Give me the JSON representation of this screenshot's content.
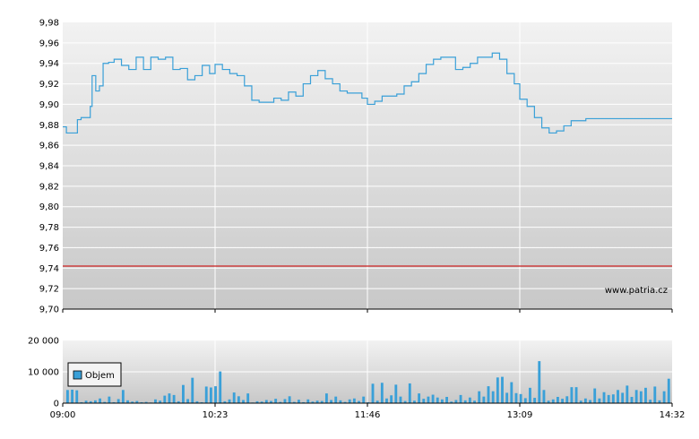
{
  "watermark": "www.patria.cz",
  "colors": {
    "price_line": "#3aa0d8",
    "reference_line": "#cc2222",
    "volume_bar": "#3aa0d8",
    "plot_bg_top": "#f2f2f2",
    "plot_bg_bottom": "#c8c8c8",
    "grid": "#ffffff"
  },
  "chart_data": [
    {
      "type": "line",
      "title": "",
      "ylim": [
        9.7,
        9.98
      ],
      "y_ticks": [
        "9,98",
        "9,96",
        "9,94",
        "9,92",
        "9,90",
        "9,88",
        "9,86",
        "9,84",
        "9,82",
        "9,80",
        "9,78",
        "9,76",
        "9,74",
        "9,72",
        "9,70"
      ],
      "x_ticks": [
        "09:00",
        "10:23",
        "11:46",
        "13:09",
        "14:32"
      ],
      "reference_value": 9.742,
      "series": [
        {
          "x": [
            "09:00",
            "09:02",
            "09:05",
            "09:08",
            "09:10",
            "09:12",
            "09:15",
            "09:16",
            "09:18",
            "09:20",
            "09:22",
            "09:25",
            "09:28",
            "09:32",
            "09:36",
            "09:40",
            "09:44",
            "09:48",
            "09:52",
            "09:56",
            "10:00",
            "10:04",
            "10:08",
            "10:12",
            "10:16",
            "10:20",
            "10:23",
            "10:27",
            "10:31",
            "10:35",
            "10:39",
            "10:43",
            "10:47",
            "10:51",
            "10:55",
            "10:59",
            "11:03",
            "11:07",
            "11:11",
            "11:15",
            "11:19",
            "11:23",
            "11:27",
            "11:31",
            "11:35",
            "11:39",
            "11:43",
            "11:46",
            "11:50",
            "11:54",
            "11:58",
            "12:02",
            "12:06",
            "12:10",
            "12:14",
            "12:18",
            "12:22",
            "12:26",
            "12:30",
            "12:34",
            "12:38",
            "12:42",
            "12:46",
            "12:50",
            "12:54",
            "12:58",
            "13:02",
            "13:06",
            "13:09",
            "13:13",
            "13:17",
            "13:21",
            "13:25",
            "13:29",
            "13:33",
            "13:37",
            "13:41",
            "13:45",
            "13:49",
            "13:53",
            "13:57",
            "14:01",
            "14:05",
            "14:09",
            "14:13",
            "14:17",
            "14:21",
            "14:25",
            "14:29",
            "14:32"
          ],
          "values": [
            9.878,
            9.872,
            9.872,
            9.885,
            9.887,
            9.887,
            9.898,
            9.928,
            9.913,
            9.918,
            9.94,
            9.941,
            9.944,
            9.938,
            9.934,
            9.946,
            9.934,
            9.946,
            9.944,
            9.946,
            9.934,
            9.935,
            9.924,
            9.928,
            9.938,
            9.93,
            9.939,
            9.934,
            9.93,
            9.928,
            9.918,
            9.904,
            9.902,
            9.902,
            9.906,
            9.904,
            9.912,
            9.908,
            9.92,
            9.928,
            9.933,
            9.925,
            9.92,
            9.913,
            9.911,
            9.911,
            9.906,
            9.9,
            9.903,
            9.908,
            9.908,
            9.91,
            9.918,
            9.922,
            9.93,
            9.939,
            9.944,
            9.946,
            9.946,
            9.934,
            9.936,
            9.94,
            9.946,
            9.946,
            9.95,
            9.944,
            9.93,
            9.92,
            9.905,
            9.898,
            9.887,
            9.877,
            9.872,
            9.874,
            9.879,
            9.884,
            9.884,
            9.886,
            9.886,
            9.886,
            9.886,
            9.886,
            9.886,
            9.886,
            9.886,
            9.886,
            9.886,
            9.886,
            9.886,
            9.886
          ]
        }
      ]
    },
    {
      "type": "bar",
      "title": "",
      "ylim": [
        0,
        20000
      ],
      "y_ticks": [
        "20 000",
        "10 000",
        "0"
      ],
      "x_ticks": [
        "09:00",
        "10:23",
        "11:46",
        "13:09",
        "14:32"
      ],
      "series": [
        {
          "name": "Objem",
          "values": [
            4200,
            4300,
            4100,
            300,
            800,
            600,
            900,
            1500,
            400,
            2100,
            300,
            1300,
            4200,
            900,
            500,
            700,
            300,
            400,
            200,
            1200,
            800,
            2400,
            3100,
            2600,
            600,
            5800,
            1300,
            8100,
            600,
            300,
            5300,
            5000,
            5400,
            10100,
            600,
            1200,
            3400,
            2200,
            1000,
            3100,
            200,
            600,
            500,
            1000,
            700,
            1400,
            400,
            1300,
            2200,
            400,
            1100,
            300,
            1200,
            500,
            800,
            700,
            3100,
            1000,
            2100,
            900,
            400,
            1200,
            1500,
            700,
            2100,
            300,
            6200,
            800,
            6500,
            1500,
            2500,
            5900,
            2100,
            700,
            6300,
            800,
            3100,
            1400,
            2100,
            2700,
            1800,
            1200,
            2000,
            500,
            1000,
            2600,
            900,
            1800,
            800,
            3800,
            2100,
            5400,
            3800,
            8200,
            8400,
            3300,
            6700,
            3200,
            2900,
            1600,
            4900,
            1700,
            13400,
            4200,
            800,
            1200,
            2000,
            1400,
            2200,
            5100,
            5100,
            800,
            1500,
            1000,
            4700,
            1500,
            3500,
            2600,
            2800,
            4200,
            3300,
            5600,
            2000,
            4200,
            3800,
            4900,
            1100,
            5300,
            900,
            3800,
            7800
          ]
        }
      ]
    }
  ]
}
